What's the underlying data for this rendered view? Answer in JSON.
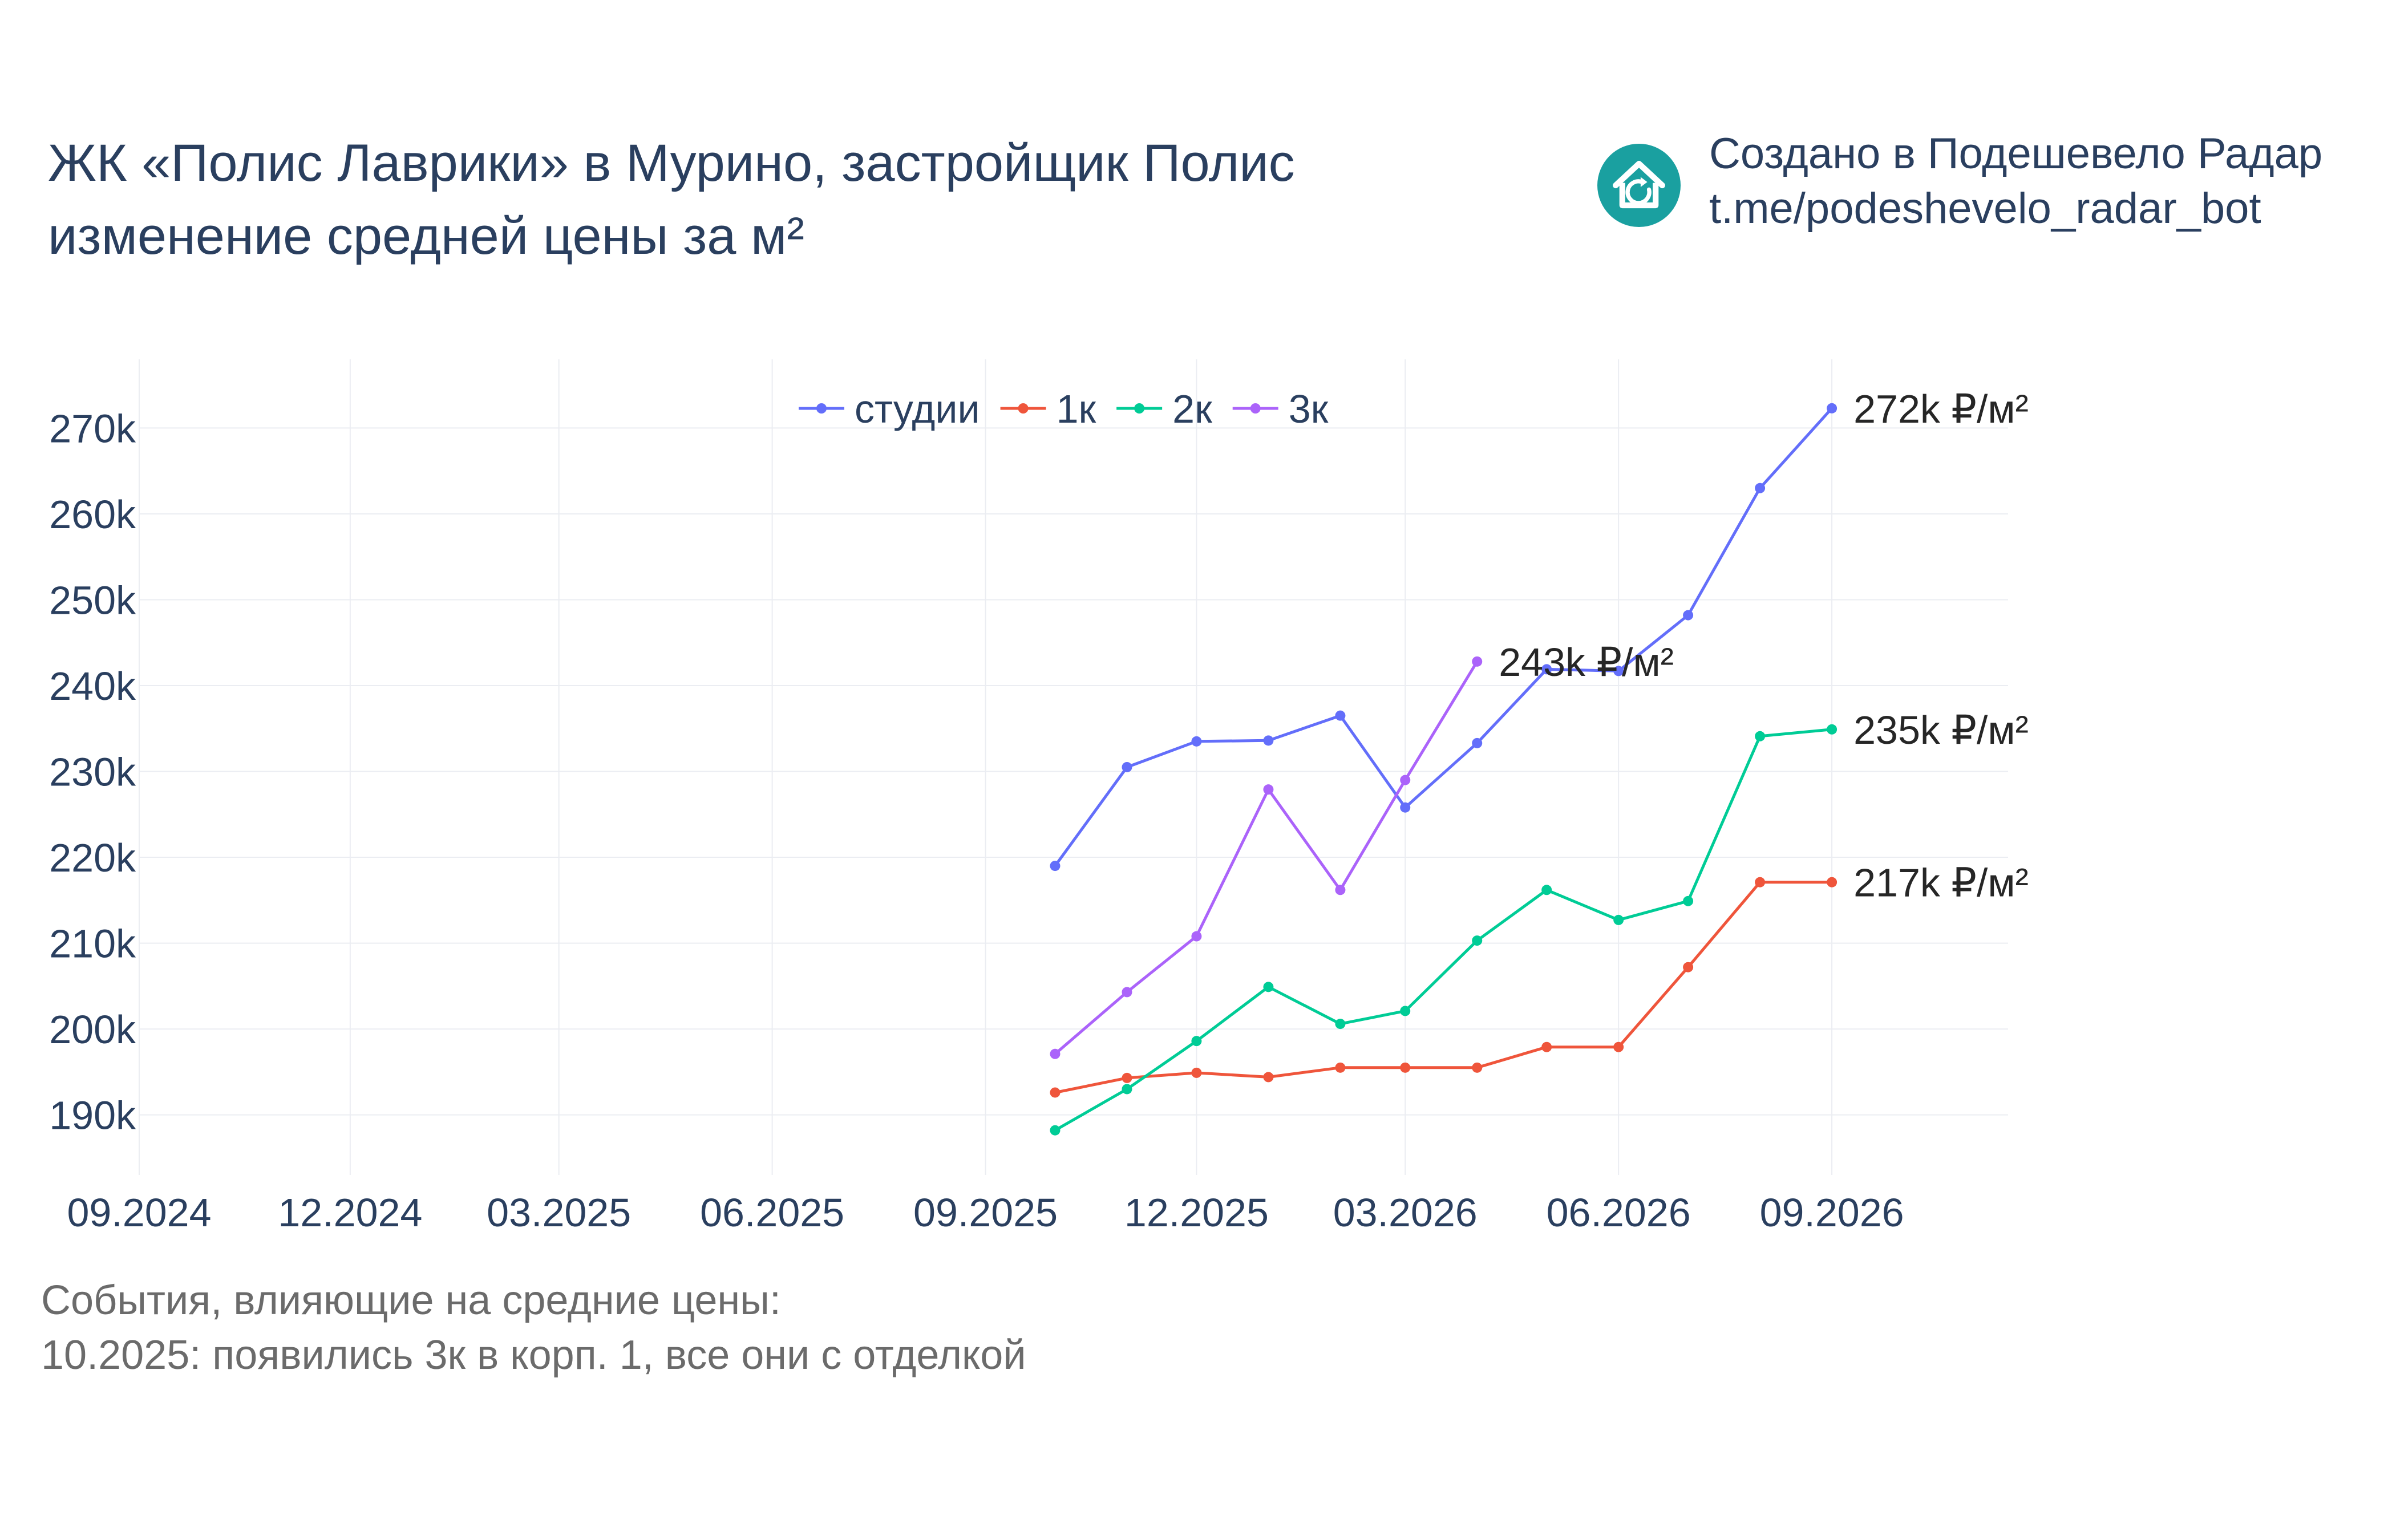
{
  "header": {
    "title_line1": "ЖК «Полис Лаврики» в Мурино, застройщик Полис",
    "title_line2": "изменение средней цены за м²"
  },
  "brand": {
    "line1": "Создано в Подешевело Радар",
    "line2": "t.me/podeshevelo_radar_bot",
    "logo_icon": "house-refresh-icon",
    "logo_color": "#1aa0a0"
  },
  "events": {
    "heading": "События, влияющие на средние цены:",
    "items": [
      "10.2025: появились 3к в корп. 1, все они с отделкой"
    ]
  },
  "chart_data": {
    "type": "line",
    "x_ticks": [
      "2024-09",
      "2024-12",
      "2025-03",
      "2025-06",
      "2025-09",
      "2025-12",
      "2026-03",
      "2026-06",
      "2026-09"
    ],
    "x_tick_labels": [
      "09.2024",
      "12.2024",
      "03.2025",
      "06.2025",
      "09.2025",
      "12.2025",
      "03.2026",
      "06.2026",
      "09.2026"
    ],
    "xlim": [
      "2024-09",
      "2026-11"
    ],
    "y_ticks": [
      190000,
      200000,
      210000,
      220000,
      230000,
      240000,
      250000,
      260000,
      270000
    ],
    "y_tick_labels": [
      "190k",
      "200k",
      "210k",
      "220k",
      "230k",
      "240k",
      "250k",
      "260k",
      "270k"
    ],
    "ylim": [
      183000,
      278000
    ],
    "grid": true,
    "legend_position": "top-center",
    "series": [
      {
        "name": "студии",
        "color": "#636efa",
        "x": [
          "2025-10",
          "2025-11",
          "2025-12",
          "2026-01",
          "2026-02",
          "2026-03",
          "2026-04",
          "2026-05",
          "2026-06",
          "2026-07",
          "2026-08",
          "2026-09"
        ],
        "y": [
          219000,
          230500,
          233500,
          233600,
          236500,
          225800,
          233300,
          241900,
          241700,
          248200,
          263000,
          272300
        ],
        "end_label": "272k ₽/м²"
      },
      {
        "name": "1к",
        "color": "#ef553b",
        "x": [
          "2025-10",
          "2025-11",
          "2025-12",
          "2026-01",
          "2026-02",
          "2026-03",
          "2026-04",
          "2026-05",
          "2026-06",
          "2026-07",
          "2026-08",
          "2026-09"
        ],
        "y": [
          192600,
          194300,
          194900,
          194400,
          195500,
          195500,
          195500,
          197900,
          197900,
          207200,
          217100,
          217100
        ],
        "end_label": "217k ₽/м²"
      },
      {
        "name": "2к",
        "color": "#00cc96",
        "x": [
          "2025-10",
          "2025-11",
          "2025-12",
          "2026-01",
          "2026-02",
          "2026-03",
          "2026-04",
          "2026-05",
          "2026-06",
          "2026-07",
          "2026-08",
          "2026-09"
        ],
        "y": [
          188200,
          193000,
          198600,
          204900,
          200600,
          202100,
          210300,
          216200,
          212700,
          214900,
          234100,
          234900
        ],
        "end_label": "235k ₽/м²"
      },
      {
        "name": "3к",
        "color": "#ab63fa",
        "x": [
          "2025-10",
          "2025-11",
          "2025-12",
          "2026-01",
          "2026-02",
          "2026-03",
          "2026-04"
        ],
        "y": [
          197100,
          204300,
          210800,
          227900,
          216200,
          229000,
          242800
        ],
        "end_label": "243k ₽/м²"
      }
    ]
  }
}
